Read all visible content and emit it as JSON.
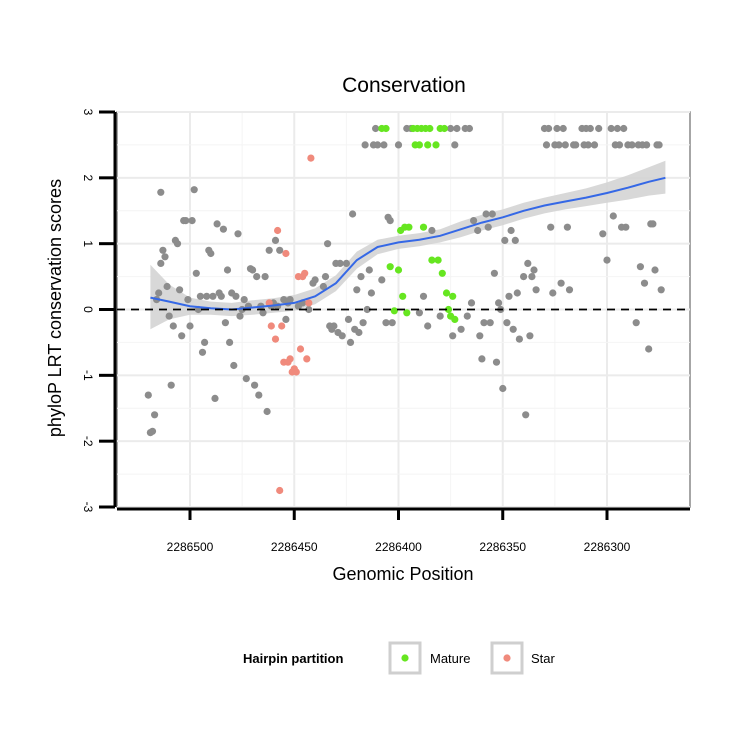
{
  "chart_data": {
    "type": "scatter",
    "title": "Conservation",
    "xlabel": "Genomic Position",
    "ylabel": "phyloP LRT conservation scores",
    "x_reversed": true,
    "xlim": [
      2286525,
      2286260
    ],
    "ylim": [
      -3,
      3
    ],
    "x_ticks": [
      2286500,
      2286450,
      2286400,
      2286350,
      2286300
    ],
    "y_ticks": [
      -3,
      -2,
      -1,
      0,
      1,
      2,
      3
    ],
    "reference_line": {
      "y": 0,
      "style": "dashed"
    },
    "grid": true,
    "colors": {
      "other": "#8c8c8c",
      "mature": "#66e620",
      "star": "#f08a7c",
      "smooth": "#3568e6",
      "band": "#d4d4d4",
      "panel": "#ebebeb"
    },
    "legend": {
      "title": "Hairpin partition",
      "placement": "bottom",
      "entries": [
        {
          "label": "Mature",
          "color": "#66e620"
        },
        {
          "label": "Star",
          "color": "#f08a7c"
        }
      ]
    },
    "smooth": {
      "x": [
        2286519,
        2286510,
        2286500,
        2286490,
        2286480,
        2286470,
        2286460,
        2286450,
        2286440,
        2286430,
        2286420,
        2286410,
        2286400,
        2286390,
        2286380,
        2286370,
        2286360,
        2286350,
        2286340,
        2286330,
        2286320,
        2286310,
        2286300,
        2286290,
        2286280,
        2286272
      ],
      "y": [
        0.18,
        0.12,
        0.05,
        0.02,
        0.0,
        0.03,
        0.06,
        0.1,
        0.2,
        0.4,
        0.75,
        0.95,
        1.02,
        1.06,
        1.12,
        1.22,
        1.32,
        1.4,
        1.5,
        1.58,
        1.64,
        1.7,
        1.77,
        1.85,
        1.94,
        2.0
      ],
      "lower": [
        -0.3,
        -0.15,
        -0.08,
        -0.08,
        -0.1,
        -0.08,
        -0.05,
        -0.02,
        0.08,
        0.28,
        0.62,
        0.84,
        0.92,
        0.96,
        1.02,
        1.1,
        1.2,
        1.28,
        1.38,
        1.46,
        1.52,
        1.57,
        1.62,
        1.67,
        1.73,
        1.76
      ],
      "upper": [
        0.68,
        0.38,
        0.18,
        0.12,
        0.1,
        0.14,
        0.17,
        0.22,
        0.32,
        0.52,
        0.88,
        1.06,
        1.12,
        1.16,
        1.22,
        1.34,
        1.44,
        1.52,
        1.62,
        1.7,
        1.77,
        1.84,
        1.93,
        2.04,
        2.16,
        2.26
      ]
    },
    "series": [
      {
        "name": "Other",
        "color": "#8c8c8c",
        "points": [
          [
            2286520,
            -1.3
          ],
          [
            2286519,
            -1.87
          ],
          [
            2286518,
            -1.85
          ],
          [
            2286517,
            -1.6
          ],
          [
            2286516,
            0.15
          ],
          [
            2286515,
            0.25
          ],
          [
            2286514,
            0.7
          ],
          [
            2286514,
            1.78
          ],
          [
            2286513,
            0.9
          ],
          [
            2286512,
            0.8
          ],
          [
            2286511,
            0.35
          ],
          [
            2286510,
            -0.1
          ],
          [
            2286509,
            -1.15
          ],
          [
            2286508,
            -0.25
          ],
          [
            2286507,
            1.05
          ],
          [
            2286506,
            1.0
          ],
          [
            2286505,
            0.3
          ],
          [
            2286504,
            -0.4
          ],
          [
            2286503,
            1.35
          ],
          [
            2286502,
            1.35
          ],
          [
            2286501,
            0.15
          ],
          [
            2286500,
            -0.25
          ],
          [
            2286499,
            1.35
          ],
          [
            2286498,
            1.82
          ],
          [
            2286497,
            0.55
          ],
          [
            2286496,
            0.0
          ],
          [
            2286495,
            0.2
          ],
          [
            2286494,
            -0.65
          ],
          [
            2286493,
            -0.5
          ],
          [
            2286492,
            0.2
          ],
          [
            2286491,
            0.9
          ],
          [
            2286490,
            0.85
          ],
          [
            2286489,
            0.2
          ],
          [
            2286488,
            -1.35
          ],
          [
            2286487,
            1.3
          ],
          [
            2286486,
            0.25
          ],
          [
            2286485,
            0.2
          ],
          [
            2286484,
            1.22
          ],
          [
            2286483,
            -0.2
          ],
          [
            2286482,
            0.6
          ],
          [
            2286481,
            -0.5
          ],
          [
            2286480,
            0.25
          ],
          [
            2286479,
            -0.85
          ],
          [
            2286478,
            0.2
          ],
          [
            2286477,
            1.15
          ],
          [
            2286476,
            -0.1
          ],
          [
            2286475,
            0.0
          ],
          [
            2286474,
            0.15
          ],
          [
            2286473,
            -1.05
          ],
          [
            2286472,
            0.05
          ],
          [
            2286471,
            0.62
          ],
          [
            2286470,
            0.6
          ],
          [
            2286469,
            -1.15
          ],
          [
            2286468,
            0.5
          ],
          [
            2286467,
            -1.3
          ],
          [
            2286466,
            0.05
          ],
          [
            2286465,
            -0.05
          ],
          [
            2286464,
            0.5
          ],
          [
            2286463,
            -1.55
          ],
          [
            2286462,
            0.9
          ],
          [
            2286461,
            0.05
          ],
          [
            2286460,
            0.1
          ],
          [
            2286459,
            1.05
          ],
          [
            2286458,
            0.05
          ],
          [
            2286457,
            0.9
          ],
          [
            2286455,
            0.15
          ],
          [
            2286454,
            -0.15
          ],
          [
            2286453,
            0.1
          ],
          [
            2286452,
            0.15
          ],
          [
            2286448,
            0.05
          ],
          [
            2286446,
            0.1
          ],
          [
            2286443,
            0.0
          ],
          [
            2286441,
            0.4
          ],
          [
            2286440,
            0.45
          ],
          [
            2286436,
            0.35
          ],
          [
            2286435,
            0.5
          ],
          [
            2286434,
            1.0
          ],
          [
            2286433,
            -0.25
          ],
          [
            2286432,
            -0.3
          ],
          [
            2286431,
            -0.25
          ],
          [
            2286430,
            0.7
          ],
          [
            2286429,
            -0.35
          ],
          [
            2286428,
            0.7
          ],
          [
            2286427,
            -0.4
          ],
          [
            2286425,
            0.7
          ],
          [
            2286424,
            -0.15
          ],
          [
            2286423,
            -0.5
          ],
          [
            2286422,
            1.45
          ],
          [
            2286421,
            -0.3
          ],
          [
            2286420,
            0.3
          ],
          [
            2286419,
            -0.35
          ],
          [
            2286418,
            0.5
          ],
          [
            2286417,
            -0.2
          ],
          [
            2286416,
            2.5
          ],
          [
            2286415,
            0.0
          ],
          [
            2286414,
            0.6
          ],
          [
            2286413,
            0.25
          ],
          [
            2286412,
            2.5
          ],
          [
            2286411,
            2.75
          ],
          [
            2286410,
            2.5
          ],
          [
            2286408,
            0.45
          ],
          [
            2286407,
            2.5
          ],
          [
            2286406,
            -0.2
          ],
          [
            2286405,
            1.4
          ],
          [
            2286404,
            1.35
          ],
          [
            2286403,
            -0.2
          ],
          [
            2286400,
            2.5
          ],
          [
            2286396,
            2.75
          ],
          [
            2286394,
            2.75
          ],
          [
            2286390,
            -0.05
          ],
          [
            2286388,
            0.2
          ],
          [
            2286386,
            -0.25
          ],
          [
            2286384,
            1.2
          ],
          [
            2286380,
            -0.1
          ],
          [
            2286375,
            2.75
          ],
          [
            2286374,
            -0.4
          ],
          [
            2286373,
            2.5
          ],
          [
            2286372,
            2.75
          ],
          [
            2286370,
            -0.3
          ],
          [
            2286368,
            2.75
          ],
          [
            2286367,
            -0.1
          ],
          [
            2286366,
            2.75
          ],
          [
            2286365,
            0.1
          ],
          [
            2286364,
            1.35
          ],
          [
            2286362,
            1.2
          ],
          [
            2286361,
            -0.4
          ],
          [
            2286360,
            -0.75
          ],
          [
            2286359,
            -0.2
          ],
          [
            2286358,
            1.45
          ],
          [
            2286357,
            1.25
          ],
          [
            2286356,
            -0.2
          ],
          [
            2286355,
            1.45
          ],
          [
            2286354,
            0.55
          ],
          [
            2286353,
            -0.8
          ],
          [
            2286352,
            0.1
          ],
          [
            2286351,
            0.0
          ],
          [
            2286350,
            -1.2
          ],
          [
            2286349,
            1.05
          ],
          [
            2286348,
            -0.2
          ],
          [
            2286347,
            0.2
          ],
          [
            2286346,
            1.2
          ],
          [
            2286345,
            -0.3
          ],
          [
            2286344,
            1.05
          ],
          [
            2286343,
            0.25
          ],
          [
            2286342,
            -0.45
          ],
          [
            2286340,
            0.5
          ],
          [
            2286339,
            -1.6
          ],
          [
            2286338,
            0.7
          ],
          [
            2286337,
            -0.4
          ],
          [
            2286336,
            0.5
          ],
          [
            2286335,
            0.6
          ],
          [
            2286334,
            0.3
          ],
          [
            2286330,
            2.75
          ],
          [
            2286329,
            2.5
          ],
          [
            2286328,
            2.75
          ],
          [
            2286327,
            1.25
          ],
          [
            2286326,
            0.25
          ],
          [
            2286325,
            2.5
          ],
          [
            2286324,
            2.75
          ],
          [
            2286323,
            2.5
          ],
          [
            2286322,
            0.4
          ],
          [
            2286321,
            2.75
          ],
          [
            2286320,
            2.5
          ],
          [
            2286319,
            1.25
          ],
          [
            2286318,
            0.3
          ],
          [
            2286316,
            2.5
          ],
          [
            2286315,
            2.5
          ],
          [
            2286312,
            2.75
          ],
          [
            2286311,
            2.5
          ],
          [
            2286310,
            2.75
          ],
          [
            2286309,
            2.5
          ],
          [
            2286308,
            2.75
          ],
          [
            2286306,
            2.5
          ],
          [
            2286304,
            2.75
          ],
          [
            2286302,
            1.15
          ],
          [
            2286300,
            0.75
          ],
          [
            2286298,
            2.75
          ],
          [
            2286297,
            1.42
          ],
          [
            2286296,
            2.5
          ],
          [
            2286295,
            2.75
          ],
          [
            2286294,
            2.5
          ],
          [
            2286293,
            1.25
          ],
          [
            2286292,
            2.75
          ],
          [
            2286291,
            1.25
          ],
          [
            2286290,
            2.5
          ],
          [
            2286288,
            2.5
          ],
          [
            2286286,
            -0.2
          ],
          [
            2286285,
            2.5
          ],
          [
            2286284,
            0.65
          ],
          [
            2286283,
            2.5
          ],
          [
            2286282,
            0.4
          ],
          [
            2286281,
            2.5
          ],
          [
            2286280,
            -0.6
          ],
          [
            2286279,
            1.3
          ],
          [
            2286278,
            1.3
          ],
          [
            2286277,
            0.6
          ],
          [
            2286276,
            2.5
          ],
          [
            2286275,
            2.5
          ],
          [
            2286274,
            0.3
          ]
        ]
      },
      {
        "name": "Mature",
        "color": "#66e620",
        "points": [
          [
            2286408,
            2.75
          ],
          [
            2286406,
            2.75
          ],
          [
            2286404,
            0.65
          ],
          [
            2286402,
            -0.02
          ],
          [
            2286400,
            0.6
          ],
          [
            2286399,
            1.2
          ],
          [
            2286398,
            0.2
          ],
          [
            2286397,
            1.25
          ],
          [
            2286396,
            -0.05
          ],
          [
            2286395,
            1.25
          ],
          [
            2286393,
            2.75
          ],
          [
            2286392,
            2.5
          ],
          [
            2286391,
            2.75
          ],
          [
            2286390,
            2.5
          ],
          [
            2286389,
            2.75
          ],
          [
            2286388,
            1.25
          ],
          [
            2286387,
            2.75
          ],
          [
            2286386,
            2.5
          ],
          [
            2286385,
            2.75
          ],
          [
            2286384,
            0.75
          ],
          [
            2286382,
            2.5
          ],
          [
            2286381,
            0.75
          ],
          [
            2286380,
            2.75
          ],
          [
            2286379,
            0.55
          ],
          [
            2286378,
            2.75
          ],
          [
            2286377,
            0.25
          ],
          [
            2286376,
            0.0
          ],
          [
            2286375,
            -0.1
          ],
          [
            2286374,
            0.2
          ],
          [
            2286373,
            -0.15
          ]
        ]
      },
      {
        "name": "Star",
        "color": "#f08a7c",
        "points": [
          [
            2286462,
            0.1
          ],
          [
            2286461,
            -0.25
          ],
          [
            2286459,
            -0.45
          ],
          [
            2286458,
            1.2
          ],
          [
            2286457,
            -2.75
          ],
          [
            2286456,
            -0.25
          ],
          [
            2286455,
            -0.8
          ],
          [
            2286454,
            0.85
          ],
          [
            2286453,
            -0.8
          ],
          [
            2286452,
            -0.75
          ],
          [
            2286451,
            -0.95
          ],
          [
            2286450,
            -0.9
          ],
          [
            2286449,
            -0.95
          ],
          [
            2286448,
            0.5
          ],
          [
            2286447,
            -0.6
          ],
          [
            2286446,
            0.5
          ],
          [
            2286445,
            0.55
          ],
          [
            2286444,
            -0.75
          ],
          [
            2286443,
            0.1
          ],
          [
            2286442,
            2.3
          ]
        ]
      }
    ]
  }
}
